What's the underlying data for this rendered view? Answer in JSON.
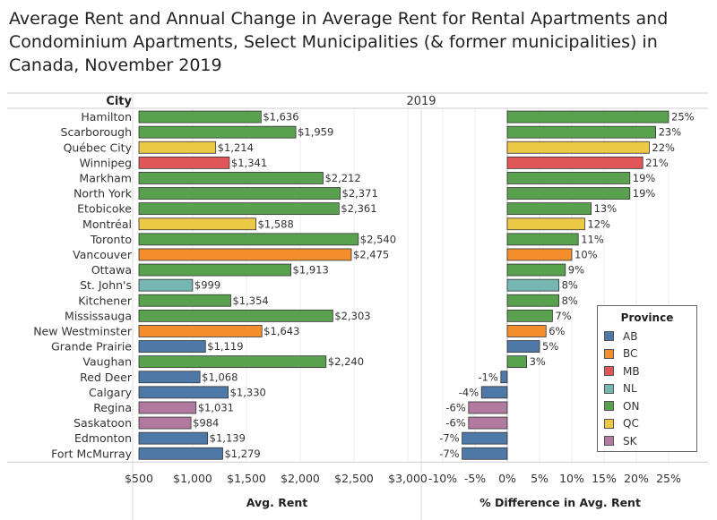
{
  "title": "Average Rent and Annual Change in Average Rent for Rental Apartments and Condominium Apartments, Select Municipalities (& former municipalities) in Canada, November 2019",
  "header": {
    "city_label": "City",
    "year_label": "2019"
  },
  "legend": {
    "title": "Province",
    "items": [
      {
        "label": "AB",
        "color": "#4e79a7"
      },
      {
        "label": "BC",
        "color": "#f28e2b"
      },
      {
        "label": "MB",
        "color": "#e15759"
      },
      {
        "label": "NL",
        "color": "#76b7b2"
      },
      {
        "label": "ON",
        "color": "#59a14f"
      },
      {
        "label": "QC",
        "color": "#edc948"
      },
      {
        "label": "SK",
        "color": "#b07aa1"
      }
    ]
  },
  "chart_data": [
    {
      "type": "bar",
      "xlabel": "Avg. Rent",
      "xlim": [
        500,
        3000
      ],
      "xticks": [
        "$500",
        "$1,000",
        "$1,500",
        "$2,000",
        "$2,500",
        "$3,000"
      ],
      "categories": [
        "Hamilton",
        "Scarborough",
        "Québec City",
        "Winnipeg",
        "Markham",
        "North York",
        "Etobicoke",
        "Montréal",
        "Toronto",
        "Vancouver",
        "Ottawa",
        "St. John's",
        "Kitchener",
        "Mississauga",
        "New Westminster",
        "Grande Prairie",
        "Vaughan",
        "Red Deer",
        "Calgary",
        "Regina",
        "Saskatoon",
        "Edmonton",
        "Fort McMurray"
      ],
      "province": [
        "ON",
        "ON",
        "QC",
        "MB",
        "ON",
        "ON",
        "ON",
        "QC",
        "ON",
        "BC",
        "ON",
        "NL",
        "ON",
        "ON",
        "BC",
        "AB",
        "ON",
        "AB",
        "AB",
        "SK",
        "SK",
        "AB",
        "AB"
      ],
      "values": [
        1636,
        1959,
        1214,
        1341,
        2212,
        2371,
        2361,
        1588,
        2540,
        2475,
        1913,
        999,
        1354,
        2303,
        1643,
        1119,
        2240,
        1068,
        1330,
        1031,
        984,
        1139,
        1279
      ],
      "labels": [
        "$1,636",
        "$1,959",
        "$1,214",
        "$1,341",
        "$2,212",
        "$2,371",
        "$2,361",
        "$1,588",
        "$2,540",
        "$2,475",
        "$1,913",
        "$999",
        "$1,354",
        "$2,303",
        "$1,643",
        "$1,119",
        "$2,240",
        "$1,068",
        "$1,330",
        "$1,031",
        "$984",
        "$1,139",
        "$1,279"
      ]
    },
    {
      "type": "bar",
      "xlabel": "% Difference in Avg. Rent",
      "xlim": [
        -10,
        25
      ],
      "xticks": [
        "-10%",
        "-5%",
        "0%",
        "5%",
        "10%",
        "15%",
        "20%",
        "25%"
      ],
      "categories": [
        "Hamilton",
        "Scarborough",
        "Québec City",
        "Winnipeg",
        "Markham",
        "North York",
        "Etobicoke",
        "Montréal",
        "Toronto",
        "Vancouver",
        "Ottawa",
        "St. John's",
        "Kitchener",
        "Mississauga",
        "New Westminster",
        "Grande Prairie",
        "Vaughan",
        "Red Deer",
        "Calgary",
        "Regina",
        "Saskatoon",
        "Edmonton",
        "Fort McMurray"
      ],
      "values": [
        25,
        23,
        22,
        21,
        19,
        19,
        13,
        12,
        11,
        10,
        9,
        8,
        8,
        7,
        6,
        5,
        3,
        -1,
        -4,
        -6,
        -6,
        -7,
        -7
      ],
      "labels": [
        "25%",
        "23%",
        "22%",
        "21%",
        "19%",
        "19%",
        "13%",
        "12%",
        "11%",
        "10%",
        "9%",
        "8%",
        "8%",
        "7%",
        "6%",
        "5%",
        "3%",
        "-1%",
        "-4%",
        "-6%",
        "-6%",
        "-7%",
        "-7%"
      ]
    }
  ]
}
